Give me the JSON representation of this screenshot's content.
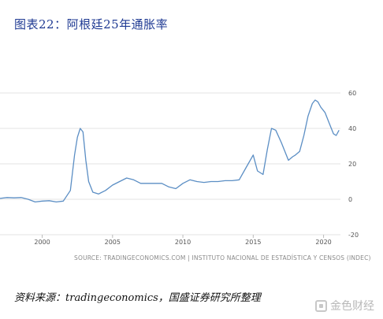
{
  "title": "图表22：阿根廷25年通胀率",
  "source_note": "SOURCE: TRADINGECONOMICS.COM | INSTITUTO NACIONAL DE ESTADÍSTICA Y CENSOS (INDEC)",
  "footer_text": "资料来源：tradingeconomics，国盛证券研究所整理",
  "watermark_text": "金色财经",
  "colors": {
    "line": "#5b8ec4",
    "grid": "#e3e3e3",
    "tick": "#555555"
  },
  "chart_data": {
    "type": "line",
    "title": "",
    "xlabel": "",
    "ylabel": "",
    "xlim": [
      1997,
      2021.2
    ],
    "ylim": [
      -20,
      60
    ],
    "x_ticks": [
      2000,
      2005,
      2010,
      2015,
      2020
    ],
    "y_ticks": [
      60,
      40,
      20,
      0,
      -20
    ],
    "grid": true,
    "series": [
      {
        "name": "",
        "points": [
          [
            1997.0,
            0.5
          ],
          [
            1997.5,
            1
          ],
          [
            1998.0,
            0.8
          ],
          [
            1998.5,
            1
          ],
          [
            1999.0,
            0
          ],
          [
            1999.5,
            -1.5
          ],
          [
            2000.0,
            -1
          ],
          [
            2000.5,
            -0.8
          ],
          [
            2001.0,
            -1.5
          ],
          [
            2001.5,
            -1
          ],
          [
            2002.0,
            5
          ],
          [
            2002.3,
            25
          ],
          [
            2002.5,
            35
          ],
          [
            2002.7,
            40
          ],
          [
            2002.9,
            38
          ],
          [
            2003.1,
            22
          ],
          [
            2003.3,
            10
          ],
          [
            2003.6,
            4
          ],
          [
            2004.0,
            3
          ],
          [
            2004.5,
            5
          ],
          [
            2005.0,
            8
          ],
          [
            2005.5,
            10
          ],
          [
            2006.0,
            12
          ],
          [
            2006.5,
            11
          ],
          [
            2007.0,
            9
          ],
          [
            2007.5,
            9
          ],
          [
            2008.0,
            9
          ],
          [
            2008.5,
            9
          ],
          [
            2009.0,
            7
          ],
          [
            2009.5,
            6
          ],
          [
            2010.0,
            9
          ],
          [
            2010.5,
            11
          ],
          [
            2011.0,
            10
          ],
          [
            2011.5,
            9.5
          ],
          [
            2012.0,
            10
          ],
          [
            2012.5,
            10
          ],
          [
            2013.0,
            10.5
          ],
          [
            2013.5,
            10.5
          ],
          [
            2014.0,
            11
          ],
          [
            2014.5,
            18
          ],
          [
            2015.0,
            25
          ],
          [
            2015.3,
            16
          ],
          [
            2015.7,
            14
          ],
          [
            2016.0,
            28
          ],
          [
            2016.3,
            40
          ],
          [
            2016.6,
            39
          ],
          [
            2017.0,
            32
          ],
          [
            2017.3,
            26
          ],
          [
            2017.5,
            22
          ],
          [
            2017.8,
            24
          ],
          [
            2018.0,
            25
          ],
          [
            2018.3,
            27
          ],
          [
            2018.6,
            36
          ],
          [
            2018.9,
            47
          ],
          [
            2019.2,
            54
          ],
          [
            2019.4,
            56
          ],
          [
            2019.6,
            55
          ],
          [
            2019.8,
            52
          ],
          [
            2020.1,
            49
          ],
          [
            2020.4,
            43
          ],
          [
            2020.7,
            37
          ],
          [
            2020.9,
            36
          ],
          [
            2021.1,
            39
          ]
        ]
      }
    ]
  }
}
